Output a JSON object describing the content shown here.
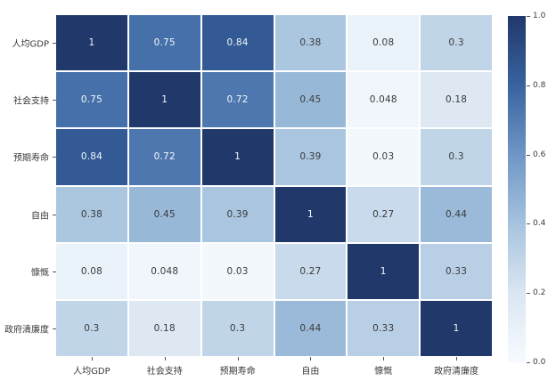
{
  "chart_data": {
    "type": "heatmap",
    "title": "",
    "categories": [
      "人均GDP",
      "社会支持",
      "预期寿命",
      "自由",
      "慷慨",
      "政府清廉度"
    ],
    "matrix": [
      [
        1,
        0.75,
        0.84,
        0.38,
        0.08,
        0.3
      ],
      [
        0.75,
        1,
        0.72,
        0.45,
        0.048,
        0.18
      ],
      [
        0.84,
        0.72,
        1,
        0.39,
        0.03,
        0.3
      ],
      [
        0.38,
        0.45,
        0.39,
        1,
        0.27,
        0.44
      ],
      [
        0.08,
        0.048,
        0.03,
        0.27,
        1,
        0.33
      ],
      [
        0.3,
        0.18,
        0.3,
        0.44,
        0.33,
        1
      ]
    ],
    "value_range": [
      0,
      1
    ],
    "legend_position": "right",
    "colorbar_ticks": [
      {
        "label": "1.0",
        "value": 1.0
      },
      {
        "label": "0.8",
        "value": 0.8
      },
      {
        "label": "0.6",
        "value": 0.6
      },
      {
        "label": "0.4",
        "value": 0.4
      },
      {
        "label": "0.2",
        "value": 0.2
      },
      {
        "label": "0.0",
        "value": 0.0
      }
    ],
    "colormap": {
      "name": "Blues",
      "stops": [
        [
          0.0,
          "#f7fbff"
        ],
        [
          0.2,
          "#dae6f2"
        ],
        [
          0.4,
          "#a6c3de"
        ],
        [
          0.6,
          "#6f96c6"
        ],
        [
          0.8,
          "#38639f"
        ],
        [
          1.0,
          "#21386b"
        ]
      ]
    },
    "colors": {
      "cell_text_on_light": "#3b3b3b",
      "cell_text_on_dark": "#f2f6fb",
      "axis_label": "#3a3a3a",
      "grid_line": "#ffffff",
      "background": "#ffffff"
    },
    "dark_text_threshold": 0.6
  }
}
